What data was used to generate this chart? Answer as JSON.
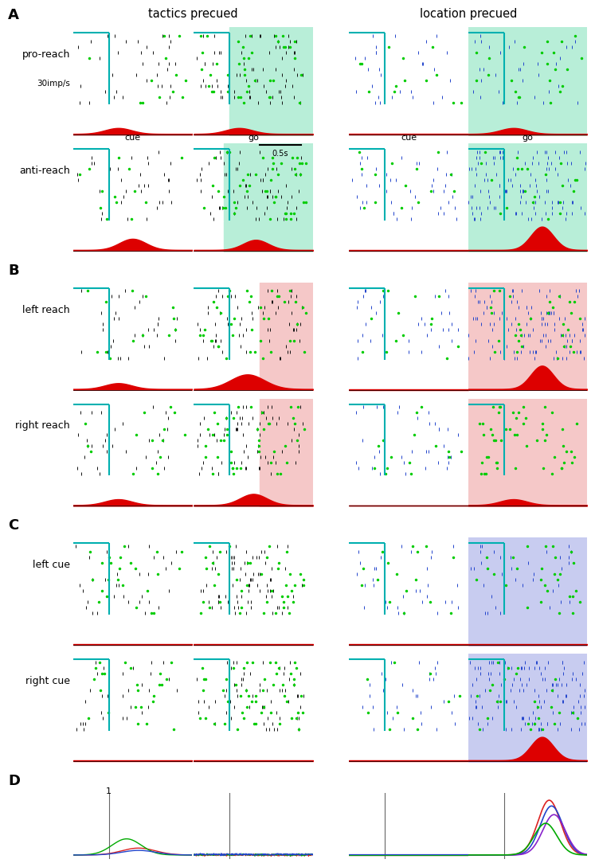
{
  "title_A": "A",
  "title_B": "B",
  "title_C": "C",
  "title_D": "D",
  "col_title_left": "tactics precued",
  "col_title_right": "location precued",
  "row_labels_A": [
    "pro-reach",
    "anti-reach"
  ],
  "row_labels_B": [
    "left reach",
    "right reach"
  ],
  "row_labels_C": [
    "left cue",
    "right cue"
  ],
  "scale_label": "30imp/s",
  "scale_bar": "0.5s",
  "cue_label": "cue",
  "go_label": "go",
  "bg_green": "#b8eed8",
  "bg_pink": "#f5c8c8",
  "bg_blue": "#c8ccf0",
  "cyan_color": "#00b0b0",
  "red_color": "#dd0000",
  "green_dot_color": "#00cc00",
  "blue_dot_color": "#2244cc",
  "black_dot_color": "#111111"
}
